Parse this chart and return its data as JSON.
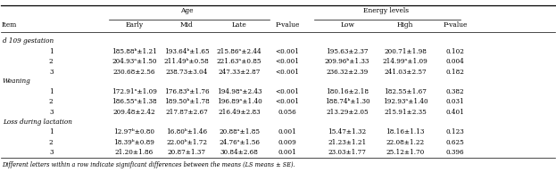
{
  "footnote": "Different letters within a row indicate significant differences between the means (LS means ± SE).",
  "col_headers": {
    "age_group": "Age",
    "energy_group": "Energy levels"
  },
  "sub_headers": {
    "age": [
      "Early",
      "Mid",
      "Late"
    ],
    "pvalue1": "P-value",
    "energy": [
      "Low",
      "High"
    ],
    "pvalue2": "P-value"
  },
  "row_label_col": "Item",
  "sections": [
    {
      "name": "d 109 gestation",
      "rows": [
        {
          "id": "1",
          "early": "185.88ᵇ±1.21",
          "mid": "193.64ᵇ±1.65",
          "late": "215.86ᵃ±2.44",
          "pval1": "<0.001",
          "low": "195.63±2.37",
          "high": "200.71±1.98",
          "pval2": "0.102"
        },
        {
          "id": "2",
          "early": "204.93ᵃ±1.50",
          "mid": "211.49ᵇ±0.58",
          "late": "221.63ᵃ±0.85",
          "pval1": "<0.001",
          "low": "209.96ᵇ±1.33",
          "high": "214.99ᵃ±1.09",
          "pval2": "0.004"
        },
        {
          "id": "3",
          "early": "230.68±2.56",
          "mid": "238.73±3.04",
          "late": "247.33±2.87",
          "pval1": "<0.001",
          "low": "236.32±2.39",
          "high": "241.03±2.57",
          "pval2": "0.182"
        }
      ]
    },
    {
      "name": "Weaning",
      "rows": [
        {
          "id": "1",
          "early": "172.91ᵃ±1.09",
          "mid": "176.83ᵇ±1.76",
          "late": "194.98ᵃ±2.43",
          "pval1": "<0.001",
          "low": "180.16±2.18",
          "high": "182.55±1.67",
          "pval2": "0.382"
        },
        {
          "id": "2",
          "early": "186.55ᵃ±1.38",
          "mid": "189.50ᵇ±1.78",
          "late": "196.89ᵃ±1.40",
          "pval1": "<0.001",
          "low": "188.74ᵇ±1.30",
          "high": "192.93ᵃ±1.40",
          "pval2": "0.031"
        },
        {
          "id": "3",
          "early": "209.48±2.42",
          "mid": "217.87±2.67",
          "late": "216.49±2.83",
          "pval1": "0.056",
          "low": "213.29±2.05",
          "high": "215.91±2.35",
          "pval2": "0.401"
        }
      ]
    },
    {
      "name": "Loss during lactation",
      "rows": [
        {
          "id": "1",
          "early": "12.97ᵇ±0.80",
          "mid": "16.80ᵇ±1.46",
          "late": "20.88ᵃ±1.85",
          "pval1": "0.001",
          "low": "15.47±1.32",
          "high": "18.16±1.13",
          "pval2": "0.123"
        },
        {
          "id": "2",
          "early": "18.39ᵇ±0.89",
          "mid": "22.00ᵇ±1.72",
          "late": "24.76ᵃ±1.56",
          "pval1": "0.009",
          "low": "21.23±1.21",
          "high": "22.08±1.22",
          "pval2": "0.625"
        },
        {
          "id": "3",
          "early": "21.20±1.86",
          "mid": "20.87±1.37",
          "late": "30.84±2.68",
          "pval1": "0.001",
          "low": "23.03±1.77",
          "high": "25.12±1.70",
          "pval2": "0.396"
        }
      ]
    }
  ]
}
